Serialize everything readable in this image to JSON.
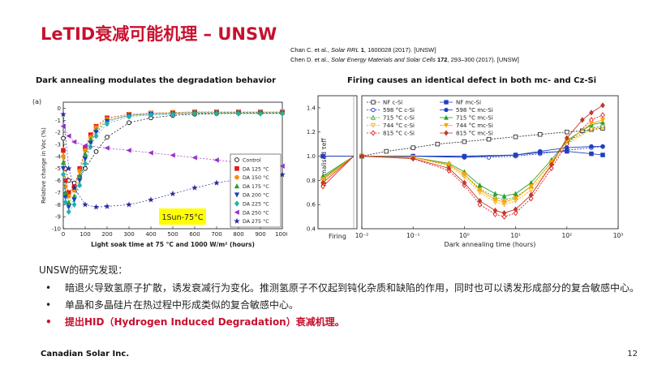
{
  "title": "LeTID衰减可能机理 – UNSW",
  "references": {
    "ref1": {
      "authors": "Chan C. et al., ",
      "journal": "Solar RRL",
      "vol": "1",
      "rest": ", 1600028 (2017). [UNSW]"
    },
    "ref2": {
      "authors": "Chen D. et al., ",
      "journal": "Solar Energy Materials and Solar Cells",
      "vol": "172",
      "rest": ", 293–300 (2017). [UNSW]"
    }
  },
  "left_heading": "Dark annealing modulates the degradation behavior",
  "right_heading": "Firing causes an identical defect in both mc- and Cz-Si",
  "findings": {
    "lead": "UNSW的研究发现：",
    "bullets": [
      {
        "text": "暗退火导致氢原子扩散，诱发衰减行为变化。推测氢原子不仅起到钝化杂质和缺陷的作用，同时也可以诱发形成部分的复合敏感中心。"
      },
      {
        "text": "单晶和多晶硅片在热过程中形成类似的复合敏感中心。"
      },
      {
        "text": "提出HID（Hydrogen Induced Degradation）衰减机理。"
      }
    ],
    "bullet_mark": "•"
  },
  "footer": "Canadian Solar Inc.",
  "page_number": "12",
  "colors": {
    "accent": "#c8102e"
  },
  "chart_data": [
    {
      "type": "scatter",
      "panel_label": "(a)",
      "xlabel": "Light soak time at 75 °C and 1000 W/m² (hours)",
      "ylabel": "Relative change in Voc (%)",
      "xlim": [
        0,
        1000
      ],
      "ylim": [
        -10,
        0.5
      ],
      "xticks": [
        "0",
        "100",
        "200",
        "300",
        "400",
        "500",
        "600",
        "700",
        "800",
        "900",
        "1000"
      ],
      "yticks": [
        "0",
        "-1",
        "-2",
        "-3",
        "-4",
        "-5",
        "-6",
        "-7",
        "-8",
        "-9",
        "-10"
      ],
      "annotation": "1Sun-75°C",
      "legend_position": "bottom-right",
      "series": [
        {
          "name": "Control",
          "color": "#000000",
          "marker": "circle-open",
          "x": [
            0,
            10,
            25,
            50,
            75,
            100,
            150,
            200,
            300,
            400,
            500,
            600,
            700,
            800,
            900,
            1000
          ],
          "y": [
            -2.5,
            -5,
            -6,
            -6.2,
            -5.7,
            -5,
            -3.6,
            -2.4,
            -1.2,
            -0.8,
            -0.6,
            -0.5,
            -0.45,
            -0.4,
            -0.4,
            -0.4
          ]
        },
        {
          "name": "DA 125 °C",
          "color": "#e41a1c",
          "marker": "square",
          "x": [
            0,
            10,
            25,
            50,
            75,
            100,
            125,
            150,
            200,
            300,
            400,
            500,
            600,
            700,
            800,
            900,
            1000
          ],
          "y": [
            -3.5,
            -6,
            -7,
            -6.5,
            -5,
            -3.3,
            -2.2,
            -1.5,
            -0.8,
            -0.5,
            -0.4,
            -0.35,
            -0.3,
            -0.3,
            -0.3,
            -0.3,
            -0.3
          ]
        },
        {
          "name": "DA 150 °C",
          "color": "#ff8c00",
          "marker": "circle",
          "x": [
            0,
            10,
            25,
            50,
            75,
            100,
            125,
            150,
            200,
            300,
            400,
            500,
            600,
            700,
            800,
            900,
            1000
          ],
          "y": [
            -4,
            -6.5,
            -7.3,
            -6.8,
            -5.2,
            -3.5,
            -2.4,
            -1.6,
            -0.9,
            -0.5,
            -0.4,
            -0.35,
            -0.3,
            -0.3,
            -0.3,
            -0.3,
            -0.3
          ]
        },
        {
          "name": "DA 175 °C",
          "color": "#2ca02c",
          "marker": "triangle-up",
          "x": [
            0,
            10,
            25,
            50,
            75,
            100,
            125,
            150,
            200,
            300,
            400,
            500,
            600,
            700,
            800,
            900,
            1000
          ],
          "y": [
            -4.5,
            -7,
            -7.8,
            -7.3,
            -5.6,
            -3.8,
            -2.6,
            -1.8,
            -1,
            -0.6,
            -0.45,
            -0.4,
            -0.35,
            -0.35,
            -0.35,
            -0.35,
            -0.35
          ]
        },
        {
          "name": "DA 200 °C",
          "color": "#1f3fbf",
          "marker": "triangle-down",
          "x": [
            0,
            10,
            25,
            50,
            75,
            100,
            125,
            150,
            200,
            300,
            400,
            500,
            600,
            700,
            800,
            900,
            1000
          ],
          "y": [
            -5,
            -7.4,
            -8.2,
            -7.6,
            -6,
            -4.2,
            -2.9,
            -2,
            -1.1,
            -0.6,
            -0.5,
            -0.45,
            -0.4,
            -0.4,
            -0.4,
            -0.4,
            -0.4
          ]
        },
        {
          "name": "DA 225 °C",
          "color": "#20b2aa",
          "marker": "diamond",
          "x": [
            0,
            10,
            25,
            50,
            75,
            100,
            125,
            150,
            200,
            300,
            400,
            500,
            600,
            700,
            800,
            900,
            1000
          ],
          "y": [
            -5.5,
            -7.8,
            -8.6,
            -8,
            -6.4,
            -4.6,
            -3.2,
            -2.3,
            -1.3,
            -0.7,
            -0.55,
            -0.5,
            -0.45,
            -0.45,
            -0.45,
            -0.45,
            -0.45
          ]
        },
        {
          "name": "DA 250 °C",
          "color": "#9932cc",
          "marker": "triangle-left",
          "x": [
            0,
            25,
            50,
            100,
            200,
            300,
            400,
            500,
            600,
            700,
            800,
            900,
            1000
          ],
          "y": [
            -1.5,
            -2.3,
            -2.8,
            -3.1,
            -3.3,
            -3.5,
            -3.7,
            -3.9,
            -4.1,
            -4.3,
            -4.5,
            -4.7,
            -4.8
          ]
        },
        {
          "name": "DA 275 °C",
          "color": "#2b2b9a",
          "marker": "star",
          "x": [
            0,
            25,
            50,
            100,
            150,
            200,
            300,
            400,
            500,
            600,
            700,
            800,
            900,
            1000
          ],
          "y": [
            -0.5,
            -5,
            -6.6,
            -8,
            -8.2,
            -8.15,
            -8,
            -7.6,
            -7.1,
            -6.6,
            -6.2,
            -5.9,
            -5.7,
            -5.5
          ]
        }
      ]
    },
    {
      "type": "line",
      "ylabel": "Normalised τeff",
      "xlabel": "Dark annealing time (hours)",
      "left_panel_label": "Firing",
      "xscale": "log",
      "xlim": [
        0.01,
        1000
      ],
      "ylim": [
        0.4,
        1.5
      ],
      "xticks": [
        "10⁻²",
        "10⁻¹",
        "10⁰",
        "10¹",
        "10²",
        "10³"
      ],
      "yticks": [
        "0.4",
        "0.6",
        "0.8",
        "1.0",
        "1.2",
        "1.4"
      ],
      "legend_position": "top",
      "series": [
        {
          "name": "NF c-Si",
          "color": "#333333",
          "marker": "square-open",
          "x": [
            0.01,
            0.03,
            0.1,
            0.3,
            1,
            3,
            10,
            30,
            100,
            200,
            300,
            500
          ],
          "y": [
            1,
            1.04,
            1.07,
            1.1,
            1.12,
            1.14,
            1.16,
            1.18,
            1.2,
            1.21,
            1.22,
            1.23
          ]
        },
        {
          "name": "598 °C c-Si",
          "color": "#1f3fbf",
          "marker": "circle-open",
          "x": [
            0.01,
            0.1,
            1,
            3,
            10,
            30,
            100,
            300,
            500
          ],
          "y": [
            1,
            1,
            1,
            0.99,
            1,
            1.02,
            1.05,
            1.07,
            1.08
          ]
        },
        {
          "name": "715 °C c-Si",
          "color": "#2ca02c",
          "marker": "triangle-open",
          "x": [
            0.01,
            0.1,
            0.5,
            1,
            2,
            4,
            6,
            10,
            20,
            50,
            100,
            300,
            500
          ],
          "y": [
            1,
            0.99,
            0.93,
            0.85,
            0.73,
            0.66,
            0.64,
            0.66,
            0.75,
            0.95,
            1.12,
            1.23,
            1.25
          ]
        },
        {
          "name": "744 °C c-Si",
          "color": "#ffa500",
          "marker": "triangle-down-open",
          "x": [
            0.01,
            0.1,
            0.5,
            1,
            2,
            4,
            6,
            10,
            20,
            50,
            100,
            300,
            500
          ],
          "y": [
            1,
            0.99,
            0.92,
            0.83,
            0.7,
            0.62,
            0.6,
            0.63,
            0.72,
            0.93,
            1.1,
            1.22,
            1.24
          ]
        },
        {
          "name": "815 °C c-Si",
          "color": "#e41a1c",
          "marker": "diamond-open",
          "x": [
            0.01,
            0.1,
            0.5,
            1,
            2,
            4,
            6,
            10,
            20,
            50,
            100,
            300,
            500
          ],
          "y": [
            1,
            0.98,
            0.88,
            0.76,
            0.6,
            0.52,
            0.5,
            0.53,
            0.65,
            0.9,
            1.1,
            1.3,
            1.34
          ]
        },
        {
          "name": "NF mc-Si",
          "color": "#1f3fbf",
          "marker": "square",
          "x": [
            0.01,
            0.1,
            1,
            10,
            30,
            100,
            300,
            500
          ],
          "y": [
            1,
            1,
            1,
            1.01,
            1.03,
            1.04,
            1.02,
            1.01
          ]
        },
        {
          "name": "598 °C mc-Si",
          "color": "#1f3fbf",
          "marker": "circle",
          "x": [
            0.01,
            0.1,
            1,
            10,
            30,
            100,
            300,
            500
          ],
          "y": [
            1,
            1,
            0.99,
            1.01,
            1.04,
            1.07,
            1.08,
            1.08
          ]
        },
        {
          "name": "715 °C mc-Si",
          "color": "#2ca02c",
          "marker": "triangle-up",
          "x": [
            0.01,
            0.1,
            0.5,
            1,
            2,
            4,
            6,
            10,
            20,
            50,
            100,
            300,
            500
          ],
          "y": [
            1,
            0.99,
            0.94,
            0.87,
            0.76,
            0.69,
            0.67,
            0.69,
            0.78,
            0.97,
            1.13,
            1.26,
            1.28
          ]
        },
        {
          "name": "744 °C mc-Si",
          "color": "#ffa500",
          "marker": "triangle-down",
          "x": [
            0.01,
            0.1,
            0.5,
            1,
            2,
            4,
            6,
            10,
            20,
            50,
            100,
            300,
            500
          ],
          "y": [
            1,
            0.99,
            0.93,
            0.85,
            0.72,
            0.64,
            0.62,
            0.65,
            0.75,
            0.95,
            1.12,
            1.27,
            1.3
          ]
        },
        {
          "name": "815 °C mc-Si",
          "color": "#c0392b",
          "marker": "diamond",
          "x": [
            0.01,
            0.1,
            0.5,
            1,
            2,
            4,
            6,
            10,
            20,
            50,
            100,
            200,
            300,
            500
          ],
          "y": [
            1,
            0.98,
            0.9,
            0.78,
            0.63,
            0.55,
            0.53,
            0.56,
            0.68,
            0.93,
            1.15,
            1.3,
            1.36,
            1.42
          ]
        }
      ]
    }
  ]
}
